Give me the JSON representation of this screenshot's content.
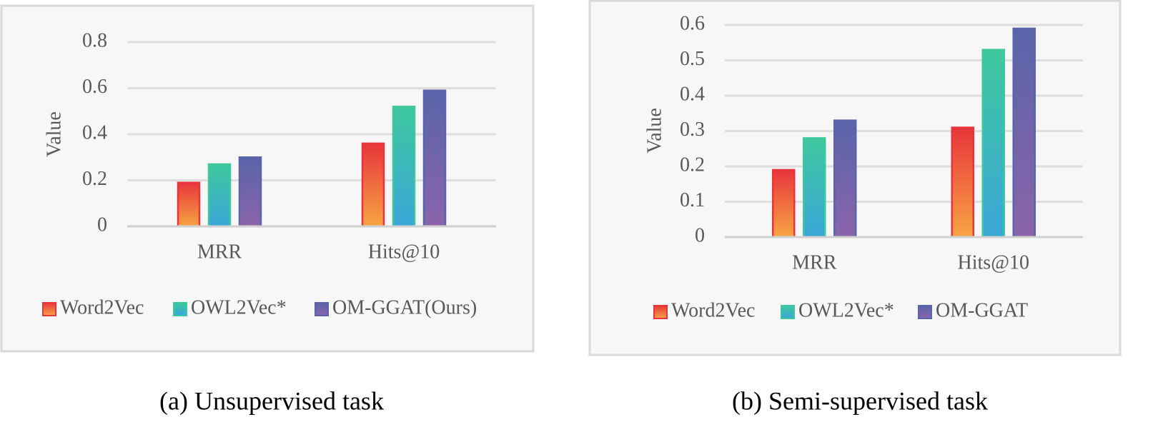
{
  "chart_data": [
    {
      "type": "bar",
      "caption": "(a) Unsupervised task",
      "ylabel": "Value",
      "categories": [
        "MRR",
        "Hits@10"
      ],
      "series": [
        {
          "name": "Word2Vec",
          "color": [
            "#e8353b",
            "#f8a444"
          ],
          "values": [
            0.19,
            0.36
          ]
        },
        {
          "name": "OWL2Vec*",
          "color": [
            "#3ec89e",
            "#3aa6d8"
          ],
          "values": [
            0.27,
            0.52
          ]
        },
        {
          "name": "OM-GGAT(Ours)",
          "color": [
            "#5a64aa",
            "#8a64aa"
          ],
          "values": [
            0.3,
            0.59
          ]
        }
      ],
      "ylim": [
        0,
        0.8
      ],
      "yticks": [
        0,
        0.2,
        0.4,
        0.6,
        0.8
      ],
      "grid": true,
      "legend": "bottom"
    },
    {
      "type": "bar",
      "caption": "(b) Semi-supervised task",
      "ylabel": "Value",
      "categories": [
        "MRR",
        "Hits@10"
      ],
      "series": [
        {
          "name": "Word2Vec",
          "color": [
            "#e8353b",
            "#f8a444"
          ],
          "values": [
            0.19,
            0.31
          ]
        },
        {
          "name": "OWL2Vec*",
          "color": [
            "#3ec89e",
            "#3aa6d8"
          ],
          "values": [
            0.28,
            0.53
          ]
        },
        {
          "name": "OM-GGAT",
          "color": [
            "#5a64aa",
            "#8a64aa"
          ],
          "values": [
            0.33,
            0.59
          ]
        }
      ],
      "ylim": [
        0,
        0.6
      ],
      "yticks": [
        0,
        0.1,
        0.2,
        0.3,
        0.4,
        0.5,
        0.6
      ],
      "grid": true,
      "legend": "bottom"
    }
  ]
}
